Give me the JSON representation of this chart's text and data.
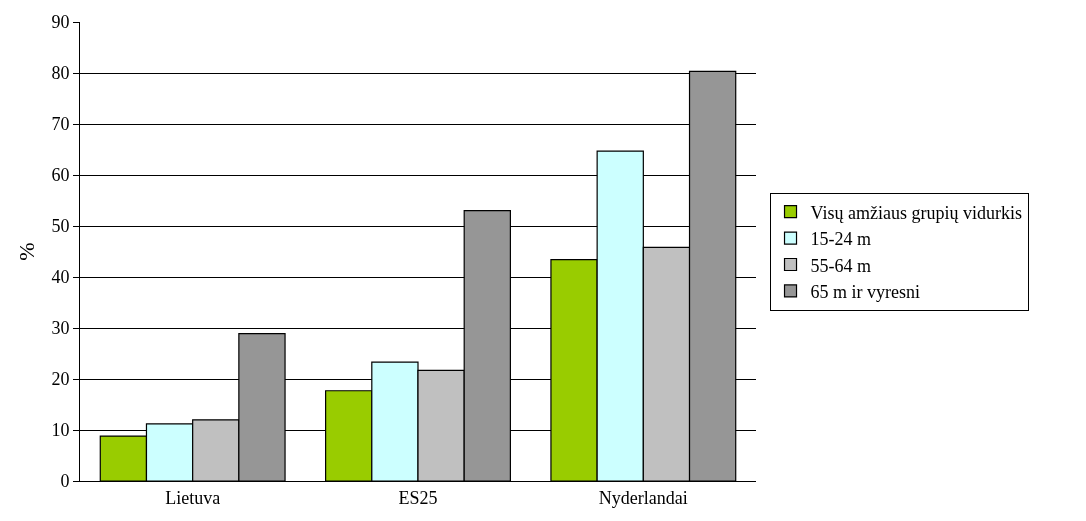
{
  "chart_data": {
    "type": "bar",
    "ylabel": "%",
    "categories": [
      "Lietuva",
      "ES25",
      "Nyderlandai"
    ],
    "series": [
      {
        "name": "Visų amžiaus grupių vidurkis",
        "color": "#99cc00",
        "values": [
          8.8,
          17.7,
          43.4
        ]
      },
      {
        "name": "15-24 m",
        "color": "#ccffff",
        "values": [
          11.2,
          23.3,
          64.7
        ]
      },
      {
        "name": "55-64 m",
        "color": "#c0c0c0",
        "values": [
          12,
          21.7,
          45.8
        ]
      },
      {
        "name": "65 m ir vyresni",
        "color": "#969696",
        "values": [
          28.9,
          53,
          80.3
        ]
      }
    ],
    "ylim": [
      0,
      90
    ],
    "yticks": [
      0,
      10,
      20,
      30,
      40,
      50,
      60,
      70,
      80,
      90
    ],
    "grid": "y",
    "legend": "right"
  }
}
